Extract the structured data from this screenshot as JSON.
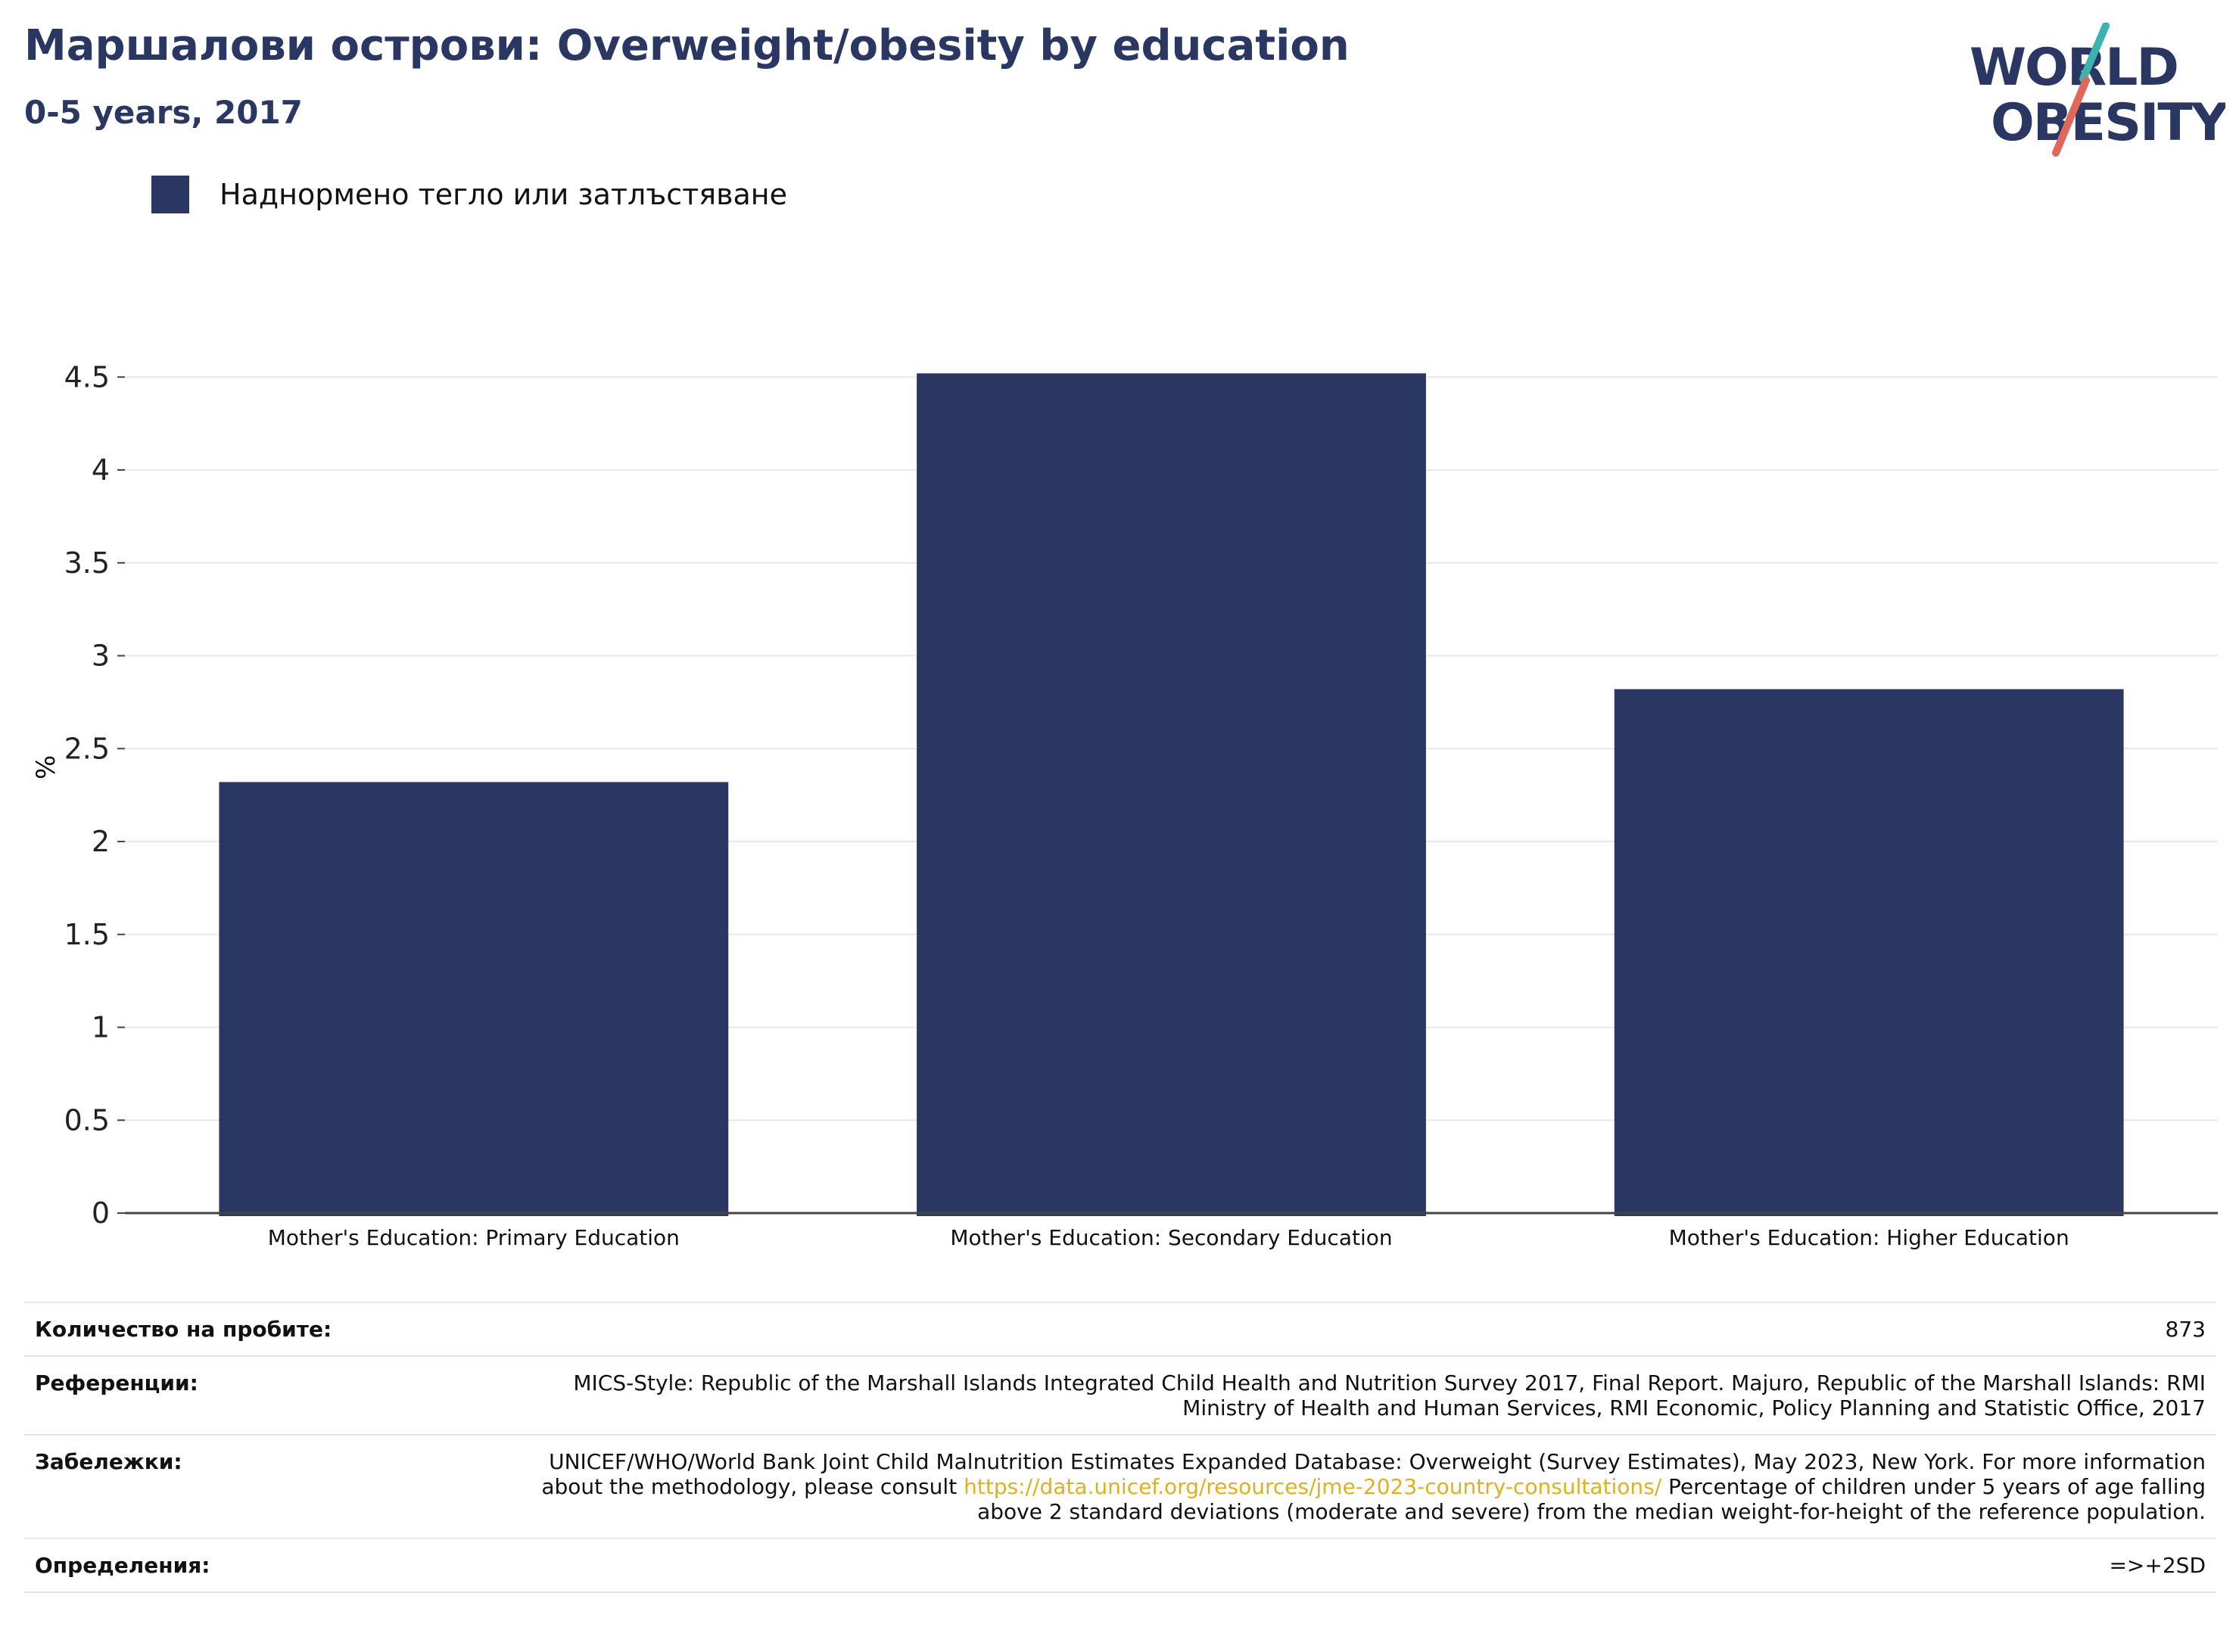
{
  "header": {
    "title": "Маршалови острови: Overweight/obesity by education",
    "subtitle": "0-5 years, 2017"
  },
  "logo": {
    "line1": "WORLD",
    "line2": "OBESITY"
  },
  "colors": {
    "bar": "#2b3763",
    "title": "#2b3763",
    "link": "#e0b020"
  },
  "legend": {
    "items": [
      {
        "label": "Наднормено тегло или затлъстяване",
        "color": "#2b3763"
      }
    ]
  },
  "chart_data": {
    "type": "bar",
    "ylabel": "%",
    "ylim": [
      0,
      4.6
    ],
    "yticks": [
      "0",
      "0.5",
      "1",
      "1.5",
      "2",
      "2.5",
      "3",
      "3.5",
      "4",
      "4.5"
    ],
    "grid": true,
    "legend_position": "top-left",
    "categories": [
      "Mother's Education: Primary Education",
      "Mother's Education: Secondary Education",
      "Mother's Education: Higher Education"
    ],
    "series": [
      {
        "name": "Наднормено тегло или затлъстяване",
        "values": [
          2.32,
          4.52,
          2.82
        ]
      }
    ]
  },
  "info": {
    "sample_size": {
      "label": "Количество на пробите:",
      "value": "873"
    },
    "references": {
      "label": "Референции:",
      "value": "MICS-Style: Republic of the Marshall Islands Integrated Child Health and Nutrition Survey 2017, Final Report. Majuro, Republic of the Marshall Islands: RMI Ministry of Health and Human Services, RMI Economic, Policy Planning and Statistic Office, 2017"
    },
    "notes": {
      "label": "Забележки:",
      "text_before": "UNICEF/WHO/World Bank Joint Child Malnutrition Estimates Expanded Database: Overweight (Survey Estimates), May 2023, New York. For more information about the methodology, please consult",
      "link": "https://data.unicef.org/resources/jme-2023-country-consultations/",
      "text_after": "Percentage of children under 5 years of age falling above 2 standard deviations (moderate and severe) from the median weight-for-height of the reference population."
    },
    "definitions": {
      "label": "Определения:",
      "value": "=>+2SD"
    }
  }
}
